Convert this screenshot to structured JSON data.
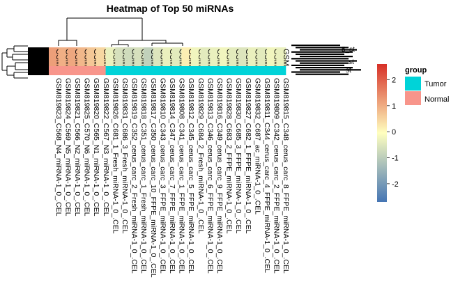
{
  "chart_data": {
    "type": "heatmap",
    "title": "Heatmap of Top 50 miRNAs",
    "columns": [
      "GSM819823_C568_N4_miRNA-1_0_.CEL",
      "GSM819824_C569_N5_miRNA-1_0_.CEL",
      "GSM819821_C566_N2_miRNA-1_0_.CEL",
      "GSM819825_C570_N6_miRNA-1_0_.CEL",
      "GSM819820_C565_N1_miRNA-1_0_.CEL",
      "GSM819822_C567_N3_miRNA-1_0_.CEL",
      "GSM819826_C681_1_Fresh_miRNA-1_0_.CEL",
      "GSM819831_C686_3_Fresh_miRNA-1_0_.CEL",
      "GSM819819_C352_cerus_carc_2_Fresh_miRNA-1_0_.CEL",
      "GSM819818_C351_cerus_carc_1_Fresh_miRNA-1_0_.CEL",
      "GSM819817_C350_cerus_carc_10_FFPE_miRNA-1_0_.CEL",
      "GSM819810_C343_cerus_carc_3_FFPE_miRNA-1_0_.CEL",
      "GSM819814_C347_cerus_carc_7_FFPE_miRNA-1_0_.CEL",
      "GSM819808_C341_cerus_carc_1_FFPE_miRNA-1_0_.CEL",
      "GSM819812_C345_cerus_carc_5_FFPE_miRNA-1_0_.CEL",
      "GSM819829_C684_2_Fresh_miRNA-1_0_.CEL",
      "GSM819813_C346_cerus_carc_6_FFPE_miRNA-1_0_.CEL",
      "GSM819816_C349_cerus_carc_9_FFPE_miRNA-1_0_.CEL",
      "GSM819828_C683_2_FFPE_miRNA-1_0_.CEL",
      "GSM819830_C685_3_FFPE_miRNA-1_0_.CEL",
      "GSM819827_C682_1_FFPE_miRNA-1_0_.CEL",
      "GSM819832_C687_ac_miRNA-1_0_.CEL",
      "GSM819811_C344_cerus_carc_4_FFPE_miRNA-1_0_.CEL",
      "GSM819809_C342_cerus_carc_2_FFPE_miRNA-1_0_.CEL",
      "GSM819815_C348_cerus_carc_8_FFPE_miRNA-1_0_.CEL"
    ],
    "column_cell_label": "GSM",
    "column_fill": [
      1.2,
      1.0,
      1.1,
      0.9,
      0.7,
      0.5,
      -0.3,
      -0.6,
      -0.7,
      -0.6,
      -0.9,
      -0.5,
      -0.3,
      -0.4,
      0.2,
      -0.2,
      -0.4,
      -0.3,
      -0.2,
      -0.4,
      -0.5,
      -0.3,
      -0.4,
      -0.2,
      -0.3
    ],
    "group_annotation": [
      "Normal",
      "Normal",
      "Normal",
      "Normal",
      "Normal",
      "Normal",
      "Tumor",
      "Tumor",
      "Tumor",
      "Tumor",
      "Tumor",
      "Tumor",
      "Tumor",
      "Tumor",
      "Tumor",
      "Tumor",
      "Tumor",
      "Tumor",
      "Tumor",
      "Tumor",
      "Tumor",
      "Tumor",
      "Tumor",
      "Tumor",
      "Tumor"
    ],
    "row_labels_visible": [
      "5_st",
      "st",
      "st"
    ],
    "color_scale": {
      "ticks": [
        2,
        1,
        0,
        -1,
        -2
      ],
      "range": [
        -2.7,
        2.6
      ],
      "low": "#4575b4",
      "mid": "#ffffbf",
      "high": "#d73027"
    },
    "legend": {
      "title": "group",
      "entries": [
        {
          "label": "Tumor",
          "color": "#00d3d8"
        },
        {
          "label": "Normal",
          "color": "#f8958b"
        }
      ]
    }
  }
}
